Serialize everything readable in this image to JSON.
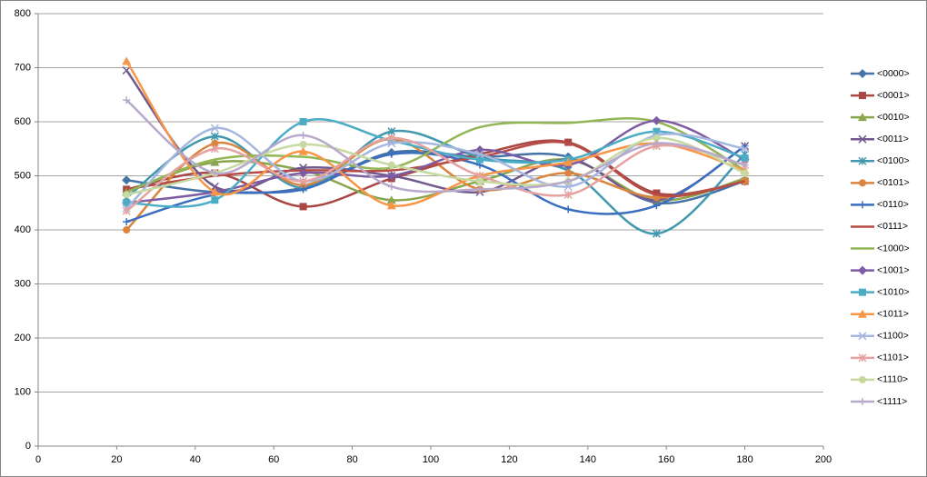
{
  "chart_data": {
    "type": "line",
    "smooth": true,
    "grid": true,
    "legend": "right",
    "x": [
      22.5,
      45,
      67.5,
      90,
      112.5,
      135,
      157.5,
      180
    ],
    "xlim": [
      0,
      200
    ],
    "xticks": [
      0,
      20,
      40,
      60,
      80,
      100,
      120,
      140,
      160,
      180,
      200
    ],
    "ylim": [
      0,
      800
    ],
    "yticks": [
      0,
      100,
      200,
      300,
      400,
      500,
      600,
      700,
      800
    ],
    "series": [
      {
        "name": "<0000>",
        "color": "#4572A7",
        "marker": "diamond",
        "values": [
          492,
          470,
          478,
          543,
          535,
          535,
          450,
          490
        ]
      },
      {
        "name": "<0001>",
        "color": "#AA4643",
        "marker": "square",
        "values": [
          475,
          505,
          443,
          495,
          540,
          562,
          468,
          490
        ]
      },
      {
        "name": "<0010>",
        "color": "#89A54E",
        "marker": "triangle",
        "values": [
          470,
          525,
          510,
          455,
          490,
          530,
          455,
          495
        ]
      },
      {
        "name": "<0011>",
        "color": "#71588F",
        "marker": "x",
        "values": [
          695,
          480,
          515,
          500,
          470,
          530,
          455,
          555
        ]
      },
      {
        "name": "<0100>",
        "color": "#4198AF",
        "marker": "star",
        "values": [
          460,
          573,
          478,
          582,
          535,
          510,
          393,
          540
        ]
      },
      {
        "name": "<0101>",
        "color": "#DB843D",
        "marker": "circle",
        "values": [
          400,
          560,
          483,
          568,
          475,
          505,
          460,
          490
        ]
      },
      {
        "name": "<0110>",
        "color": "#3A6EBF",
        "marker": "plus",
        "values": [
          415,
          465,
          475,
          540,
          520,
          438,
          445,
          555
        ]
      },
      {
        "name": "<0111>",
        "color": "#B64C45",
        "marker": "none",
        "values": [
          475,
          500,
          510,
          510,
          535,
          560,
          465,
          490
        ]
      },
      {
        "name": "<1000>",
        "color": "#93B655",
        "marker": "none",
        "values": [
          470,
          530,
          535,
          515,
          590,
          598,
          600,
          510
        ]
      },
      {
        "name": "<1001>",
        "color": "#7E5CA3",
        "marker": "diamond",
        "values": [
          450,
          470,
          505,
          500,
          548,
          520,
          602,
          530
        ]
      },
      {
        "name": "<1010>",
        "color": "#4BACC6",
        "marker": "square",
        "values": [
          450,
          455,
          600,
          565,
          530,
          530,
          582,
          533
        ]
      },
      {
        "name": "<1011>",
        "color": "#F79646",
        "marker": "triangle",
        "values": [
          712,
          470,
          545,
          445,
          500,
          525,
          560,
          510
        ]
      },
      {
        "name": "<1100>",
        "color": "#A5B7DE",
        "marker": "x",
        "values": [
          440,
          588,
          490,
          560,
          540,
          480,
          575,
          550
        ]
      },
      {
        "name": "<1101>",
        "color": "#E4A3A0",
        "marker": "star",
        "values": [
          435,
          550,
          490,
          570,
          500,
          465,
          555,
          520
        ]
      },
      {
        "name": "<1110>",
        "color": "#C6D9A0",
        "marker": "circle",
        "values": [
          465,
          505,
          558,
          520,
          490,
          490,
          570,
          505
        ]
      },
      {
        "name": "<1111>",
        "color": "#B8A9CC",
        "marker": "plus",
        "values": [
          640,
          505,
          575,
          480,
          475,
          490,
          560,
          520
        ]
      }
    ]
  }
}
